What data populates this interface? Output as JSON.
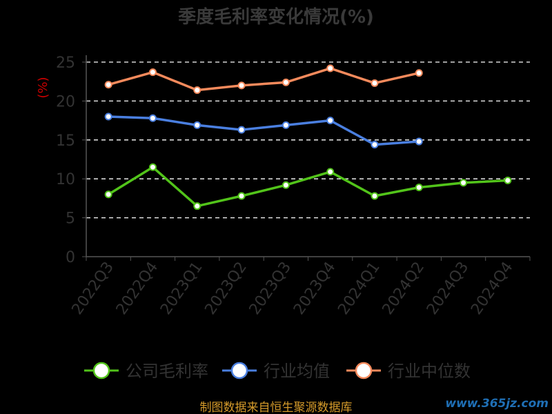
{
  "chart_data": {
    "type": "line",
    "title": "季度毛利率变化情况(%)",
    "ylabel": "(%)",
    "xlabel": "",
    "ylim": [
      0,
      25
    ],
    "yticks": [
      0,
      5,
      10,
      15,
      20,
      25
    ],
    "categories": [
      "2022Q3",
      "2022Q4",
      "2023Q1",
      "2023Q2",
      "2023Q3",
      "2023Q4",
      "2024Q1",
      "2024Q2",
      "2024Q3",
      "2024Q4"
    ],
    "grid": true,
    "legend_position": "bottom",
    "series": [
      {
        "name": "公司毛利率",
        "color": "#52c41a",
        "values": [
          8.0,
          11.5,
          6.5,
          7.8,
          9.2,
          10.9,
          7.8,
          8.9,
          9.5,
          9.8
        ]
      },
      {
        "name": "行业均值",
        "color": "#4a7fe0",
        "values": [
          18.0,
          17.8,
          16.9,
          16.3,
          16.9,
          17.5,
          14.4,
          14.8,
          null,
          null
        ]
      },
      {
        "name": "行业中位数",
        "color": "#f58a5c",
        "values": [
          22.1,
          23.7,
          21.4,
          22.0,
          22.4,
          24.2,
          22.3,
          23.6,
          null,
          null
        ]
      }
    ]
  },
  "footer": "制图数据来自恒生聚源数据库",
  "watermark": "www.365jz.com"
}
